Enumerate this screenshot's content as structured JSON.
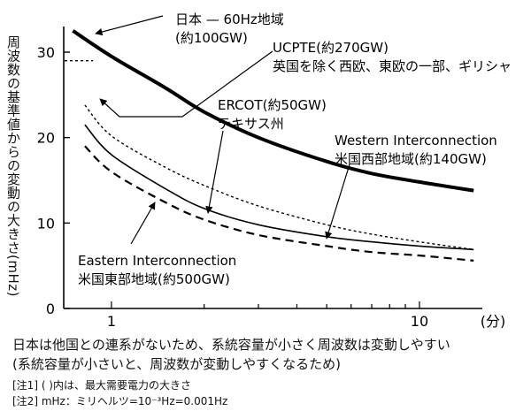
{
  "chart_data": {
    "type": "line",
    "ylabel": "周波数の基準値からの変動の大きさ",
    "yunit": "(mHz)",
    "xunit": "(分)",
    "xscale": "log",
    "xlim": [
      0.7,
      16
    ],
    "ylim": [
      0,
      33
    ],
    "xticks": [
      1,
      10
    ],
    "yticks": [
      0,
      10,
      20,
      30
    ],
    "grid": false,
    "series": [
      {
        "name": "日本 — 60Hz地域 (約100GW)",
        "label_lines": [
          "日本 — 60Hz地域",
          "(約100GW)"
        ],
        "style": "thick",
        "x": [
          0.75,
          1,
          1.5,
          2,
          3,
          5,
          7,
          10,
          15
        ],
        "y": [
          32.5,
          29.5,
          25.8,
          23.0,
          20.0,
          17.2,
          15.8,
          14.8,
          13.8
        ]
      },
      {
        "name": "UCPTE (約270GW)",
        "label_lines": [
          "UCPTE(約270GW)",
          "英国を除く西欧、東欧の一部、ギリシャ"
        ],
        "style": "dashed-short",
        "marker_y": 29,
        "x": [
          0.82,
          1,
          1.5,
          2,
          3,
          5,
          7,
          10,
          15
        ],
        "y": [
          23.8,
          20.2,
          16.5,
          14.4,
          12.0,
          9.8,
          8.7,
          7.8,
          6.9
        ]
      },
      {
        "name": "ERCOT (約50GW)",
        "label_lines": [
          "ERCOT(約50GW)",
          "テキサス州"
        ],
        "style": "thin",
        "x": [
          0.82,
          1,
          1.5,
          2,
          3,
          5,
          7,
          10,
          15
        ],
        "y": [
          21.5,
          18.0,
          14.0,
          11.7,
          9.8,
          8.4,
          7.8,
          7.3,
          6.9
        ]
      },
      {
        "name": "Western Interconnection 米国西部地域 (約140GW)",
        "label_lines": [
          "Western Interconnection",
          "米国西部地域(約140GW)"
        ],
        "style": "dashed-short"
      },
      {
        "name": "Eastern Interconnection 米国東部地域 (約500GW)",
        "label_lines": [
          "Eastern Interconnection",
          "米国東部地域(約500GW)"
        ],
        "style": "dashed-long",
        "x": [
          0.82,
          1,
          1.5,
          2,
          3,
          5,
          7,
          10,
          15
        ],
        "y": [
          19.0,
          16.0,
          12.4,
          10.4,
          8.6,
          7.3,
          6.6,
          6.2,
          5.6
        ]
      }
    ]
  },
  "notes": {
    "main": [
      "日本は他国との連系がないため、系統容量が小さく周波数は変動しやすい",
      "(系統容量が小さいと、周波数が変動しやすくなるため)"
    ],
    "footnotes": [
      "[注1] (  )内は、最大需要電力の大きさ",
      "[注2] mHz：ミリヘルツ=10⁻³Hz=0.001Hz"
    ]
  }
}
